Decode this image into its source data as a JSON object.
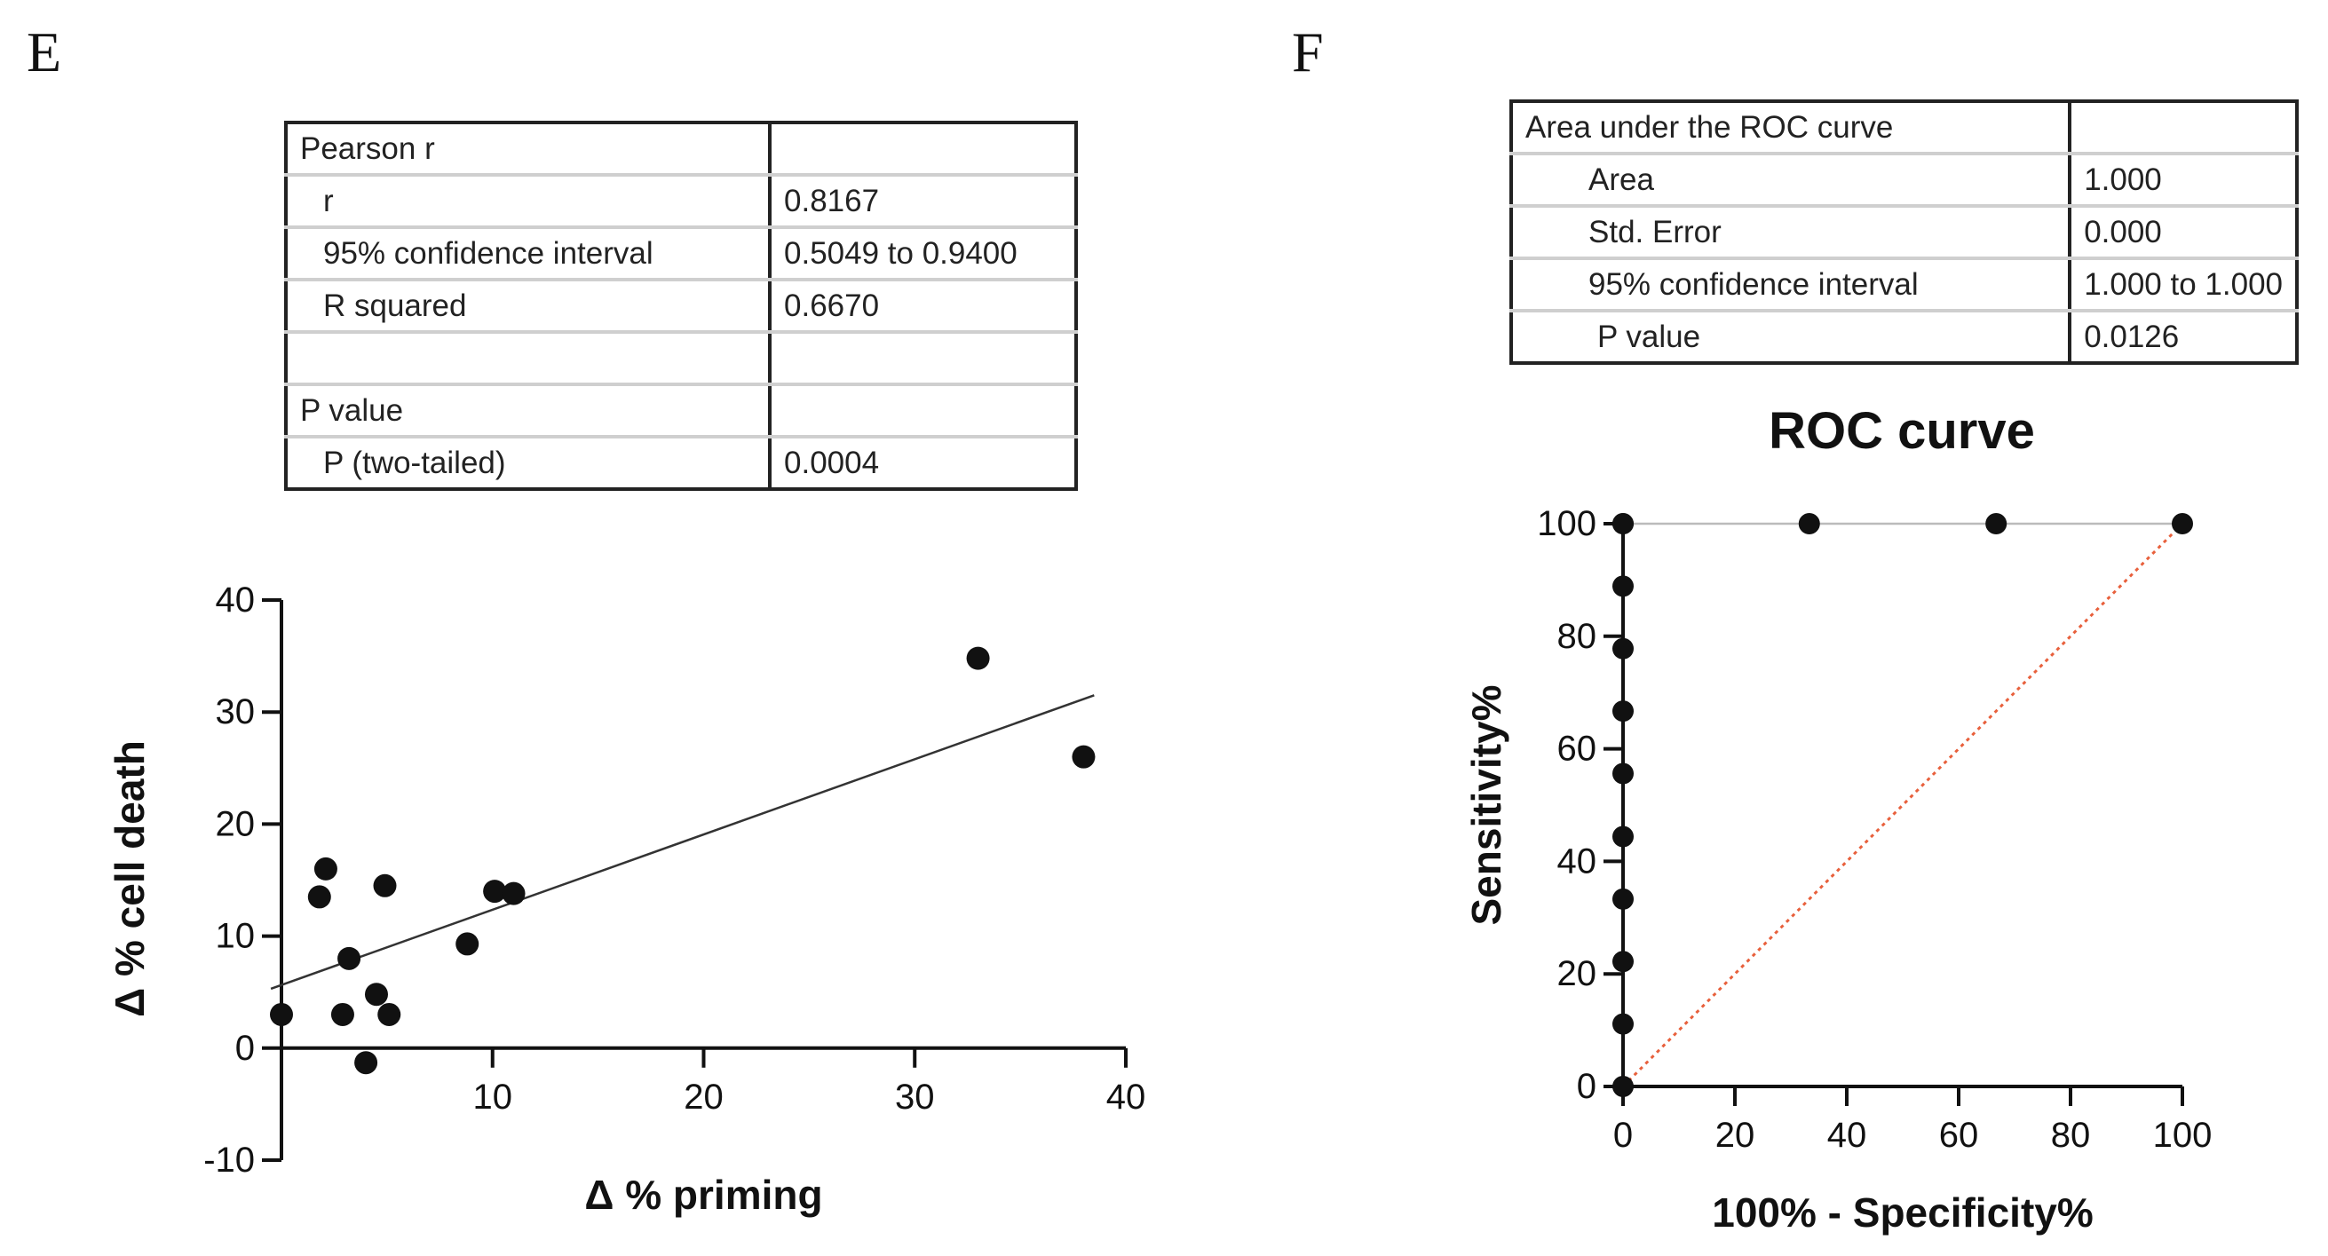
{
  "panel_e": {
    "letter": "E",
    "table": {
      "rows": [
        {
          "label": "Pearson r",
          "value": ""
        },
        {
          "label": "r",
          "value": "0.8167"
        },
        {
          "label": "95% confidence interval",
          "value": "0.5049 to 0.9400"
        },
        {
          "label": "R squared",
          "value": "0.6670"
        },
        {
          "label": "",
          "value": ""
        },
        {
          "label": "P value",
          "value": ""
        },
        {
          "label": "P (two-tailed)",
          "value": "0.0004"
        }
      ]
    }
  },
  "panel_f": {
    "letter": "F",
    "table": {
      "rows": [
        {
          "label": "Area under the ROC curve",
          "value": ""
        },
        {
          "label": "Area",
          "value": "1.000"
        },
        {
          "label": "Std. Error",
          "value": "0.000"
        },
        {
          "label": "95% confidence interval",
          "value": "1.000 to 1.000"
        },
        {
          "label": "P value",
          "value": "0.0126"
        }
      ]
    }
  },
  "chart_data": [
    {
      "type": "scatter",
      "title": "",
      "xlabel": "Δ % priming",
      "ylabel": "Δ % cell death",
      "xlim": [
        0,
        40
      ],
      "ylim": [
        -10,
        40
      ],
      "xticks": [
        "10",
        "20",
        "30",
        "40"
      ],
      "yticks": [
        "-10",
        "0",
        "10",
        "20",
        "30",
        "40"
      ],
      "grid": false,
      "points": [
        {
          "x": 0,
          "y": 3
        },
        {
          "x": 2.1,
          "y": 16
        },
        {
          "x": 1.8,
          "y": 13.5
        },
        {
          "x": 3.2,
          "y": 8
        },
        {
          "x": 2.9,
          "y": 3
        },
        {
          "x": 4,
          "y": -1.3
        },
        {
          "x": 4.5,
          "y": 4.8
        },
        {
          "x": 5.1,
          "y": 3
        },
        {
          "x": 4.9,
          "y": 14.5
        },
        {
          "x": 8.8,
          "y": 9.3
        },
        {
          "x": 10.1,
          "y": 14
        },
        {
          "x": 11,
          "y": 13.8
        },
        {
          "x": 33,
          "y": 34.8
        },
        {
          "x": 38,
          "y": 26
        }
      ],
      "fit_line": {
        "x": [
          -0.5,
          38.5
        ],
        "y": [
          5.3,
          31.5
        ]
      },
      "colors": {
        "points": "#111111",
        "line": "#333333"
      }
    },
    {
      "type": "line",
      "title": "ROC curve",
      "xlabel": "100% - Specificity%",
      "ylabel": "Sensitivity%",
      "xlim": [
        0,
        100
      ],
      "ylim": [
        0,
        100
      ],
      "xticks": [
        "0",
        "20",
        "40",
        "60",
        "80",
        "100"
      ],
      "yticks": [
        "0",
        "20",
        "40",
        "60",
        "80",
        "100"
      ],
      "grid": false,
      "series": [
        {
          "x": [
            0,
            0,
            0,
            0,
            0,
            0,
            0,
            0,
            0,
            0,
            0,
            33.3,
            66.7,
            100
          ],
          "y": [
            0,
            11.1,
            22.2,
            33.3,
            44.4,
            55.6,
            66.7,
            77.8,
            88.9,
            100,
            100,
            100,
            100,
            100
          ]
        },
        {
          "x": [
            0,
            100
          ],
          "y": [
            0,
            100
          ],
          "style": "dotted"
        }
      ],
      "colors": {
        "roc": "#111111",
        "reference": "#e8603c",
        "top_line": "#bbbbbb"
      }
    }
  ]
}
